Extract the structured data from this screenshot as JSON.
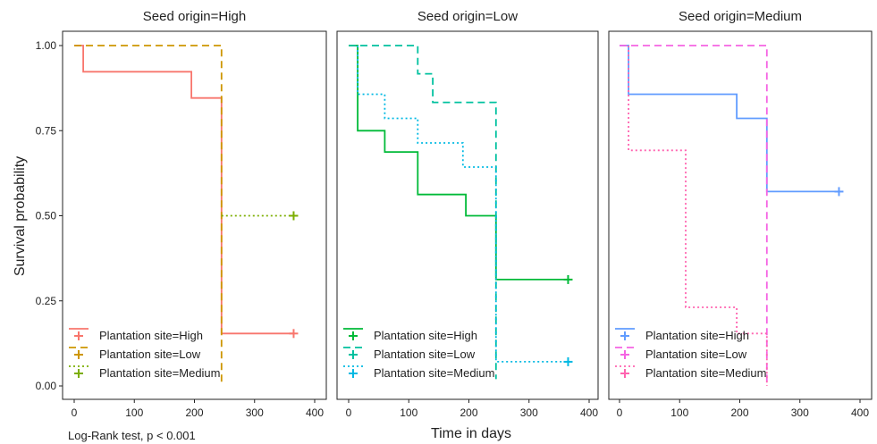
{
  "figure": {
    "ylabel": "Survival probability",
    "xlabel": "Time in days",
    "footnote": "Log-Rank test, p < 0.001"
  },
  "chart_data": [
    {
      "type": "line",
      "step": true,
      "title": "Seed origin=High",
      "xlim": [
        0,
        400
      ],
      "ylim": [
        0,
        1
      ],
      "x_ticks": [
        0,
        100,
        200,
        300,
        400
      ],
      "y_ticks": [
        0.0,
        0.25,
        0.5,
        0.75,
        1.0
      ],
      "y_tick_labels": [
        "0.00",
        "0.25",
        "0.50",
        "0.75",
        "1.00"
      ],
      "legend_position": "bottom-left",
      "series": [
        {
          "name": "Plantation site=High",
          "color": "#F8766D",
          "dash": "solid",
          "x": [
            0,
            15,
            15,
            195,
            195,
            245,
            245,
            365
          ],
          "y": [
            1,
            1,
            0.923,
            0.923,
            0.846,
            0.846,
            0.154,
            0.154
          ],
          "censor": [
            365,
            0.154
          ]
        },
        {
          "name": "Plantation site=Low",
          "color": "#CD9600",
          "dash": "dashed",
          "x": [
            0,
            245,
            245
          ],
          "y": [
            1,
            1,
            0
          ],
          "censor": null
        },
        {
          "name": "Plantation site=Medium",
          "color": "#7CAE00",
          "dash": "dotted",
          "x": [
            245,
            365
          ],
          "y": [
            0.5,
            0.5
          ],
          "censor": [
            365,
            0.5
          ]
        }
      ]
    },
    {
      "type": "line",
      "step": true,
      "title": "Seed origin=Low",
      "xlim": [
        0,
        400
      ],
      "ylim": [
        0,
        1
      ],
      "x_ticks": [
        0,
        100,
        200,
        300,
        400
      ],
      "y_ticks": [
        0.0,
        0.25,
        0.5,
        0.75,
        1.0
      ],
      "legend_position": "bottom-left",
      "series": [
        {
          "name": "Plantation site=High",
          "color": "#00BA38",
          "dash": "solid",
          "x": [
            0,
            15,
            15,
            60,
            60,
            115,
            115,
            195,
            195,
            245,
            245,
            365
          ],
          "y": [
            1,
            1,
            0.75,
            0.75,
            0.6875,
            0.6875,
            0.5625,
            0.5625,
            0.5,
            0.5,
            0.3125,
            0.3125
          ],
          "censor": [
            365,
            0.3125
          ]
        },
        {
          "name": "Plantation site=Low",
          "color": "#00C19F",
          "dash": "dashed",
          "x": [
            0,
            115,
            115,
            140,
            140,
            245,
            245
          ],
          "y": [
            1,
            1,
            0.917,
            0.917,
            0.833,
            0.833,
            0.02
          ],
          "censor": null
        },
        {
          "name": "Plantation site=Medium",
          "color": "#00B9E3",
          "dash": "dotted",
          "x": [
            15,
            15,
            60,
            60,
            115,
            115,
            190,
            190,
            245,
            245,
            365
          ],
          "y": [
            1,
            0.857,
            0.857,
            0.786,
            0.786,
            0.714,
            0.714,
            0.643,
            0.643,
            0.071,
            0.071
          ],
          "censor": [
            365,
            0.071
          ]
        }
      ]
    },
    {
      "type": "line",
      "step": true,
      "title": "Seed origin=Medium",
      "xlim": [
        0,
        400
      ],
      "ylim": [
        0,
        1
      ],
      "x_ticks": [
        0,
        100,
        200,
        300,
        400
      ],
      "y_ticks": [
        0.0,
        0.25,
        0.5,
        0.75,
        1.0
      ],
      "legend_position": "bottom-left",
      "series": [
        {
          "name": "Plantation site=High",
          "color": "#619CFF",
          "dash": "solid",
          "x": [
            0,
            15,
            15,
            195,
            195,
            245,
            245,
            365
          ],
          "y": [
            1,
            1,
            0.857,
            0.857,
            0.786,
            0.786,
            0.571,
            0.571
          ],
          "censor": [
            365,
            0.571
          ]
        },
        {
          "name": "Plantation site=Low",
          "color": "#F564E3",
          "dash": "dashed",
          "x": [
            0,
            245,
            245
          ],
          "y": [
            1,
            1,
            0
          ],
          "censor": null
        },
        {
          "name": "Plantation site=Medium",
          "color": "#FF64B0",
          "dash": "dotted",
          "x": [
            15,
            15,
            110,
            110,
            195,
            195,
            245,
            245
          ],
          "y": [
            1,
            0.692,
            0.692,
            0.231,
            0.231,
            0.154,
            0.154,
            0
          ],
          "censor": null
        }
      ]
    }
  ]
}
